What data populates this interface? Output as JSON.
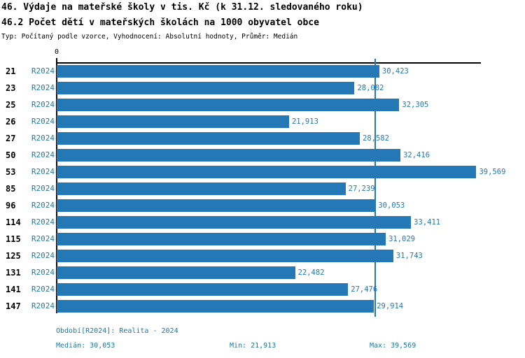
{
  "colors": {
    "bar_blue": "#2478b5",
    "label_blue": "#2478b5",
    "footer_teal": "#1878a8",
    "axis_black": "#000000"
  },
  "chart_data": {
    "type": "bar",
    "orientation": "horizontal",
    "title": "46. Výdaje na mateřské školy v tis. Kč (k 31.12. sledovaného roku)",
    "subtitle": "46.2 Počet dětí v mateřských školách na 1000 obyvatel obce",
    "meta": "Typ: Počítaný podle vzorce, Vyhodnocení: Absolutní hodnoty, Průměr: Medián",
    "categories": [
      "21",
      "23",
      "25",
      "26",
      "27",
      "50",
      "53",
      "85",
      "96",
      "114",
      "115",
      "125",
      "131",
      "141",
      "147"
    ],
    "series": [
      {
        "name": "R2024",
        "values": [
          30.423,
          28.082,
          32.305,
          21.913,
          28.582,
          32.416,
          39.569,
          27.239,
          30.053,
          33.411,
          31.029,
          31.743,
          22.482,
          27.476,
          29.914
        ],
        "value_labels": [
          "30,423",
          "28,082",
          "32,305",
          "21,913",
          "28,582",
          "32,416",
          "39,569",
          "27,239",
          "30,053",
          "33,411",
          "31,029",
          "31,743",
          "22,482",
          "27,476",
          "29,914"
        ]
      }
    ],
    "xlim": [
      0,
      40
    ],
    "x_axis_ticks": [
      {
        "value": 0,
        "label": "0"
      }
    ],
    "grid": false,
    "legend_position": "none",
    "median_line": {
      "value": 30.053
    },
    "stats": {
      "median": 30.053,
      "min": 21.913,
      "max": 39.569
    }
  },
  "footer": {
    "period_line": "Období[R2024]: Realita - 2024",
    "median_text": "Medián: 30,053",
    "min_text": "Min: 21,913",
    "max_text": "Max: 39,569"
  }
}
